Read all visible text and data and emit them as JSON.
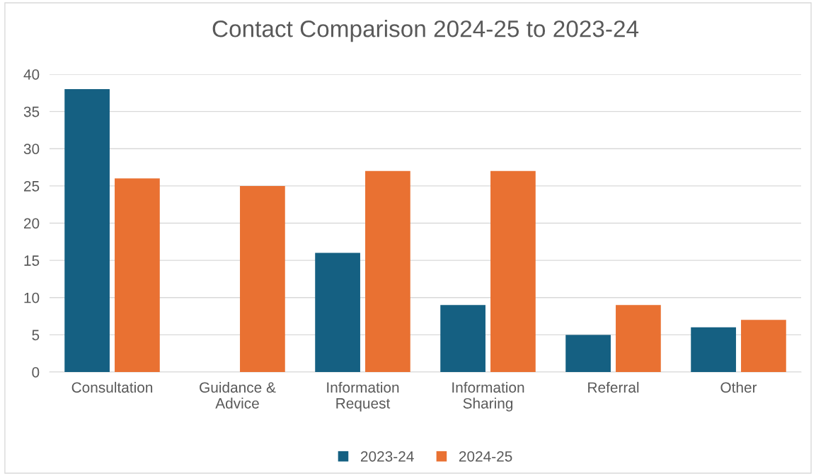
{
  "chart_data": {
    "type": "bar",
    "title": "Contact Comparison 2024-25 to 2023-24",
    "categories": [
      "Consultation",
      "Guidance & Advice",
      "Information Request",
      "Information Sharing",
      "Referral",
      "Other"
    ],
    "series": [
      {
        "name": "2023-24",
        "color": "#156082",
        "values": [
          38,
          0,
          16,
          9,
          5,
          6
        ]
      },
      {
        "name": "2024-25",
        "color": "#e97132",
        "values": [
          26,
          25,
          27,
          27,
          9,
          7
        ]
      }
    ],
    "ylim": [
      0,
      40
    ],
    "yticks": [
      0,
      5,
      10,
      15,
      20,
      25,
      30,
      35,
      40
    ],
    "grid": "y",
    "legend": "bottom"
  }
}
